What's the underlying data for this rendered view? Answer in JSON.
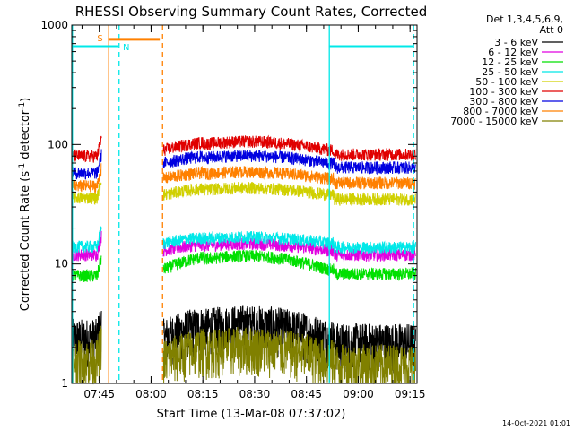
{
  "chart_data": {
    "type": "line",
    "title": "RHESSI Observing Summary Count Rates, Corrected",
    "xlabel": "Start Time (13-Mar-08 07:37:02)",
    "ylabel_main": "Corrected Count Rate (s",
    "ylabel_sup1": "-1",
    "ylabel_mid": " detector",
    "ylabel_sup2": "-1",
    "ylabel_end": ")",
    "yscale": "log",
    "ylim": [
      1,
      1000
    ],
    "xlim_minutes": [
      0,
      100
    ],
    "x_ticks": [
      {
        "label": "07:45",
        "minutes": 7.97
      },
      {
        "label": "08:00",
        "minutes": 22.97
      },
      {
        "label": "08:15",
        "minutes": 37.97
      },
      {
        "label": "08:30",
        "minutes": 52.97
      },
      {
        "label": "08:45",
        "minutes": 67.97
      },
      {
        "label": "09:00",
        "minutes": 82.97
      },
      {
        "label": "09:15",
        "minutes": 97.97
      }
    ],
    "y_ticks": [
      {
        "label": "1",
        "value": 1
      },
      {
        "label": "10",
        "value": 10
      },
      {
        "label": "100",
        "value": 100
      },
      {
        "label": "1000",
        "value": 1000
      }
    ],
    "legend_header": [
      "Det 1,3,4,5,6,9,",
      "Att 0"
    ],
    "legend_placement": "right",
    "series": [
      {
        "name": "3 - 6 keV",
        "color": "#000000",
        "before_gap": 2.4,
        "after_gap": 2.4,
        "orbit_amp": 0.8
      },
      {
        "name": "6 - 12 keV",
        "color": "#e000e0",
        "before_gap": 12,
        "after_gap": 13,
        "orbit_amp": 2
      },
      {
        "name": "12 - 25 keV",
        "color": "#00e000",
        "before_gap": 8,
        "after_gap": 9,
        "orbit_amp": 3
      },
      {
        "name": "25 - 50 keV",
        "color": "#00e8e8",
        "before_gap": 14,
        "after_gap": 15,
        "orbit_amp": 2
      },
      {
        "name": "50 - 100 keV",
        "color": "#d0d000",
        "before_gap": 36,
        "after_gap": 38,
        "orbit_amp": 6
      },
      {
        "name": "100 - 300 keV",
        "color": "#e00000",
        "before_gap": 80,
        "after_gap": 90,
        "orbit_amp": 18
      },
      {
        "name": "300 - 800 keV",
        "color": "#0000e0",
        "before_gap": 58,
        "after_gap": 70,
        "orbit_amp": 12
      },
      {
        "name": "800 - 7000 keV",
        "color": "#ff8000",
        "before_gap": 45,
        "after_gap": 52,
        "orbit_amp": 8
      },
      {
        "name": "7000 - 15000 keV",
        "color": "#808000",
        "before_gap": 1.6,
        "after_gap": 1.6,
        "orbit_amp": 0.5
      }
    ],
    "data_gap_minutes": [
      8.6,
      26.5
    ],
    "saa_bar": {
      "label": "S",
      "color": "#ff8000",
      "start_minutes": 10.5,
      "end_minutes": 25.5,
      "value": 760
    },
    "night_bars": [
      {
        "label": "N",
        "color": "#00e8e8",
        "start_minutes": 0,
        "end_minutes": 13.5,
        "value": 660
      },
      {
        "label": "",
        "color": "#00e8e8",
        "start_minutes": 74.5,
        "end_minutes": 99,
        "value": 660
      }
    ],
    "vertical_markers": [
      {
        "minutes": 0.2,
        "color": "#00e8e8",
        "style": "solid"
      },
      {
        "minutes": 10.7,
        "color": "#ff8000",
        "style": "solid"
      },
      {
        "minutes": 13.7,
        "color": "#00e8e8",
        "style": "dashed"
      },
      {
        "minutes": 26.3,
        "color": "#ff8000",
        "style": "dashed"
      },
      {
        "minutes": 74.6,
        "color": "#00e8e8",
        "style": "solid"
      },
      {
        "minutes": 99.0,
        "color": "#00e8e8",
        "style": "dashed"
      }
    ]
  },
  "footer_timestamp": "14-Oct-2021 01:01"
}
